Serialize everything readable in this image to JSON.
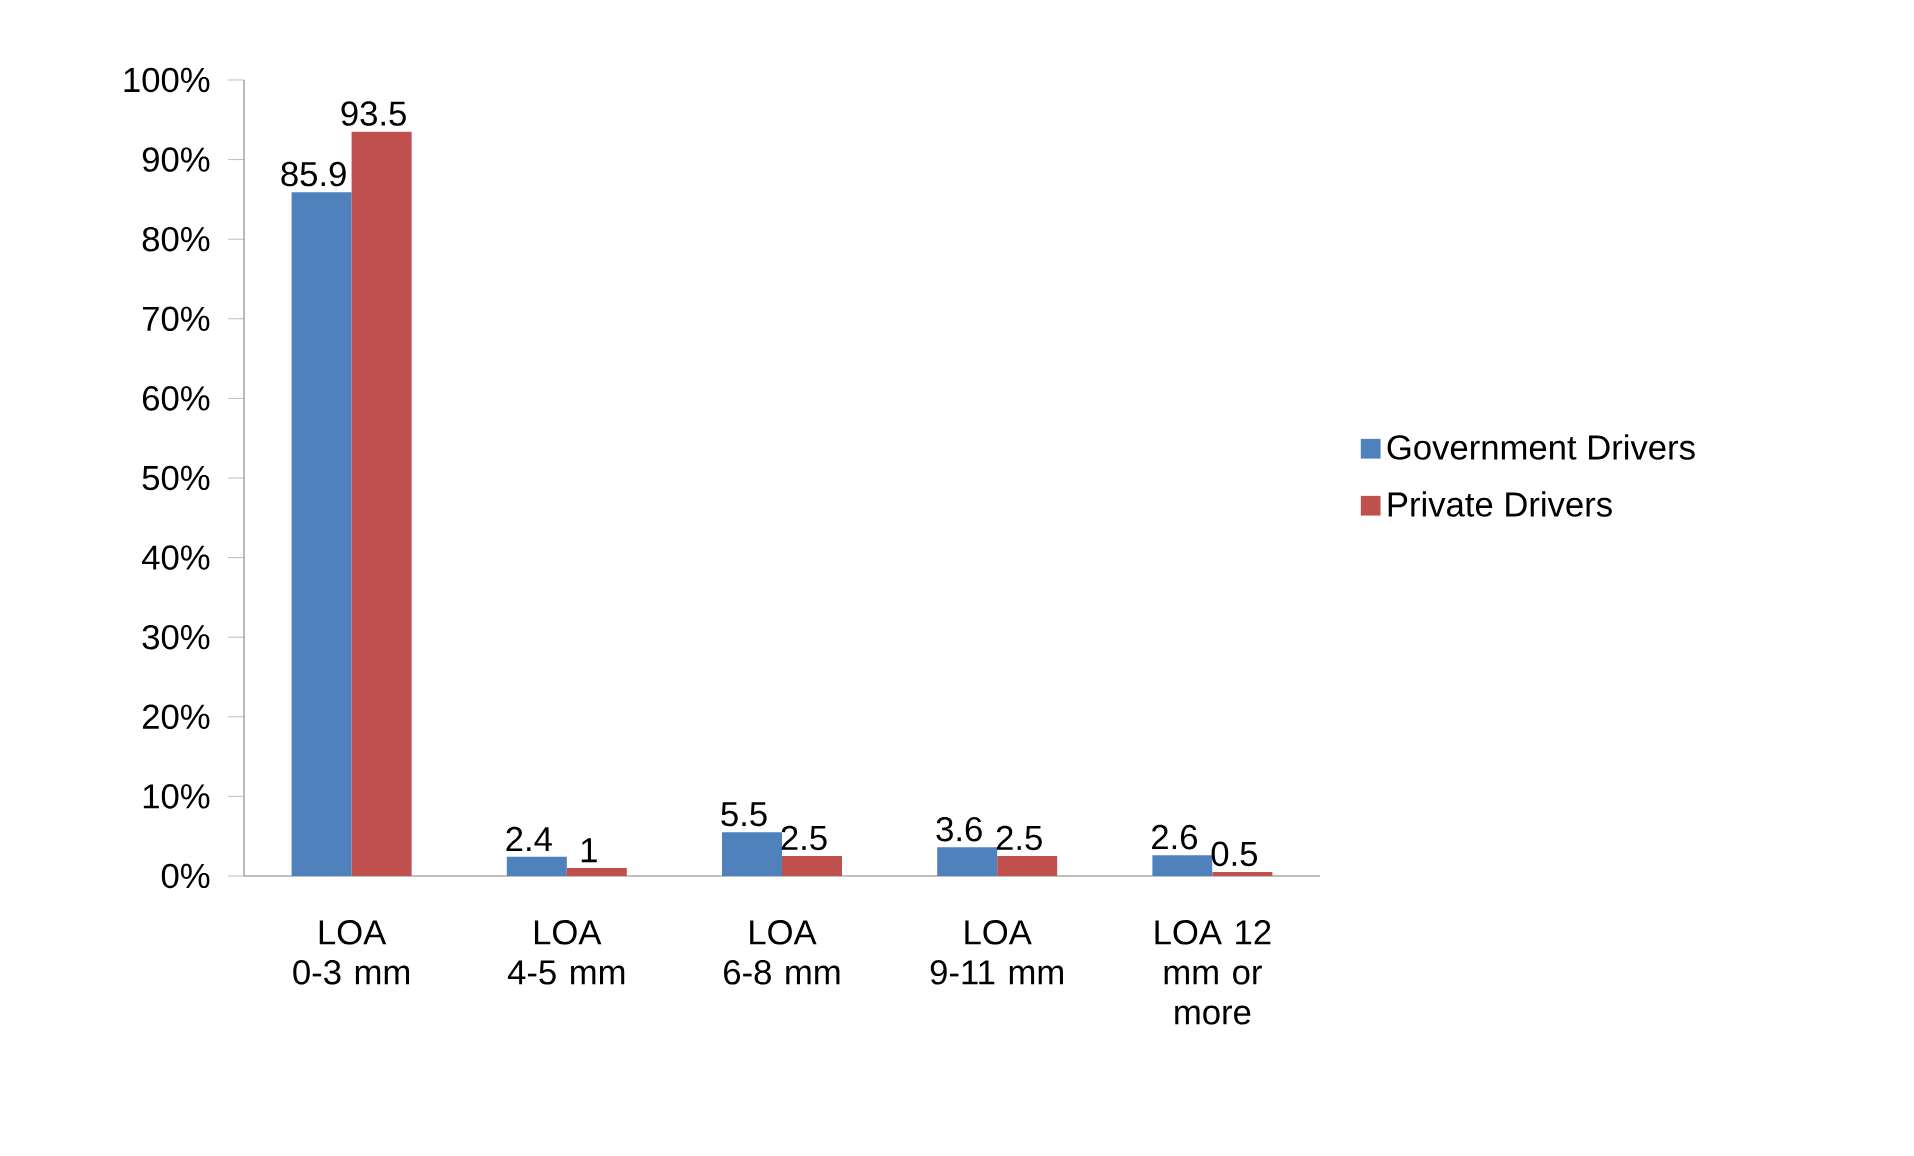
{
  "chart_data": {
    "type": "bar",
    "categories": [
      "LOA 0-3 mm",
      "LOA 4-5 mm",
      "LOA 6-8 mm",
      "LOA 9-11 mm",
      "LOA 12 mm or more"
    ],
    "series": [
      {
        "name": "Government Drivers",
        "color": "#4f81bd",
        "values": [
          85.9,
          2.4,
          5.5,
          3.6,
          2.6
        ]
      },
      {
        "name": "Private Drivers",
        "color": "#c0504d",
        "values": [
          93.5,
          1,
          2.5,
          2.5,
          0.5
        ]
      }
    ],
    "ylim": [
      0,
      100
    ],
    "yticks": [
      {
        "value": 0,
        "label": "0%"
      },
      {
        "value": 10,
        "label": "10%"
      },
      {
        "value": 20,
        "label": "20%"
      },
      {
        "value": 30,
        "label": "30%"
      },
      {
        "value": 40,
        "label": "40%"
      },
      {
        "value": 50,
        "label": "50%"
      },
      {
        "value": 60,
        "label": "60%"
      },
      {
        "value": 70,
        "label": "70%"
      },
      {
        "value": 80,
        "label": "80%"
      },
      {
        "value": 90,
        "label": "90%"
      },
      {
        "value": 100,
        "label": "100%"
      }
    ],
    "data_labels": true,
    "legend": "right",
    "grid": false
  }
}
